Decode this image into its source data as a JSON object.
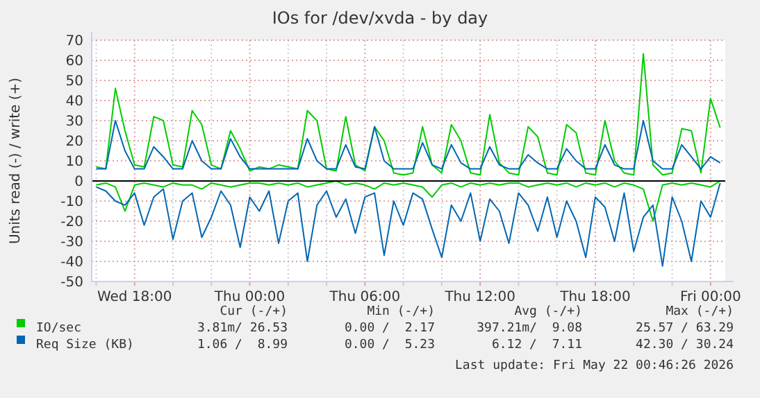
{
  "chart_data": {
    "type": "line",
    "title": "IOs for /dev/xvda - by day",
    "ylabel": "Units read (-) / write (+)",
    "x": [
      "2026-05-20T16:00",
      "2026-05-20T16:30",
      "2026-05-20T17:00",
      "2026-05-20T17:30",
      "2026-05-20T18:00",
      "2026-05-20T18:30",
      "2026-05-20T19:00",
      "2026-05-20T19:30",
      "2026-05-20T20:00",
      "2026-05-20T20:30",
      "2026-05-20T21:00",
      "2026-05-20T21:30",
      "2026-05-20T22:00",
      "2026-05-20T22:30",
      "2026-05-20T23:00",
      "2026-05-20T23:30",
      "2026-05-21T00:00",
      "2026-05-21T00:30",
      "2026-05-21T01:00",
      "2026-05-21T01:30",
      "2026-05-21T02:00",
      "2026-05-21T02:30",
      "2026-05-21T03:00",
      "2026-05-21T03:30",
      "2026-05-21T04:00",
      "2026-05-21T04:30",
      "2026-05-21T05:00",
      "2026-05-21T05:30",
      "2026-05-21T06:00",
      "2026-05-21T06:30",
      "2026-05-21T07:00",
      "2026-05-21T07:30",
      "2026-05-21T08:00",
      "2026-05-21T08:30",
      "2026-05-21T09:00",
      "2026-05-21T09:30",
      "2026-05-21T10:00",
      "2026-05-21T10:30",
      "2026-05-21T11:00",
      "2026-05-21T11:30",
      "2026-05-21T12:00",
      "2026-05-21T12:30",
      "2026-05-21T13:00",
      "2026-05-21T13:30",
      "2026-05-21T14:00",
      "2026-05-21T14:30",
      "2026-05-21T15:00",
      "2026-05-21T15:30",
      "2026-05-21T16:00",
      "2026-05-21T16:30",
      "2026-05-21T17:00",
      "2026-05-21T17:30",
      "2026-05-21T18:00",
      "2026-05-21T18:30",
      "2026-05-21T19:00",
      "2026-05-21T19:30",
      "2026-05-21T20:00",
      "2026-05-21T20:30",
      "2026-05-21T21:00",
      "2026-05-21T21:30",
      "2026-05-21T22:00",
      "2026-05-21T22:30",
      "2026-05-21T23:00",
      "2026-05-21T23:30",
      "2026-05-22T00:00",
      "2026-05-22T00:30"
    ],
    "series": [
      {
        "name": "IO/sec",
        "color": "#00cc00",
        "values": [
          7,
          6,
          46,
          25,
          8,
          7,
          32,
          30,
          8,
          7,
          35,
          28,
          8,
          6,
          25,
          16,
          5,
          7,
          6,
          8,
          7,
          6,
          35,
          30,
          6,
          5,
          32,
          8,
          5,
          27,
          20,
          4,
          3,
          4,
          27,
          8,
          4,
          28,
          20,
          4,
          3,
          33,
          9,
          4,
          3,
          27,
          22,
          4,
          3,
          28,
          24,
          4,
          3,
          30,
          10,
          4,
          3,
          63.3,
          8,
          3,
          4,
          26,
          25,
          4,
          41,
          26.5
        ]
      },
      {
        "color": "#00cc00",
        "values": [
          -2,
          -1,
          -3,
          -15,
          -2,
          -1,
          -2,
          -3,
          -1,
          -2,
          -2,
          -4,
          -1,
          -2,
          -3,
          -2,
          -1,
          -1,
          -2,
          -1,
          -2,
          -1,
          -3,
          -2,
          -1,
          0,
          -2,
          -1,
          -2,
          -4,
          -1,
          -2,
          -1,
          -2,
          -3,
          -8,
          -2,
          -1,
          -3,
          -1,
          -2,
          -1,
          -2,
          -1,
          -1,
          -3,
          -2,
          -1,
          -2,
          -1,
          -3,
          -1,
          -2,
          -1,
          -3,
          -1,
          -2,
          -4,
          -20,
          -2,
          -1,
          -2,
          -1,
          -2,
          -3,
          0
        ]
      },
      {
        "name": "Req Size (KB)",
        "color": "#0066b3",
        "values": [
          6,
          6,
          30,
          15,
          6,
          6,
          17,
          12,
          6,
          6,
          20,
          10,
          6,
          6,
          21,
          12,
          6,
          6,
          6,
          6,
          6,
          6,
          21,
          10,
          6,
          6,
          18,
          7,
          6,
          27,
          10,
          6,
          6,
          6,
          19,
          8,
          6,
          18,
          9,
          6,
          6,
          17,
          8,
          6,
          6,
          13,
          9,
          6,
          6,
          16,
          10,
          6,
          6,
          18,
          8,
          6,
          6,
          30,
          10,
          6,
          6,
          18,
          12,
          6,
          12,
          9
        ]
      },
      {
        "color": "#0066b3",
        "values": [
          -3,
          -5,
          -10,
          -12,
          -6,
          -22,
          -8,
          -4,
          -29,
          -10,
          -6,
          -28,
          -18,
          -5,
          -12,
          -33,
          -8,
          -15,
          -5,
          -31,
          -10,
          -6,
          -40,
          -12,
          -5,
          -18,
          -9,
          -26,
          -8,
          -6,
          -37,
          -10,
          -22,
          -6,
          -9,
          -24,
          -38,
          -12,
          -20,
          -6,
          -30,
          -9,
          -15,
          -31,
          -6,
          -12,
          -25,
          -8,
          -28,
          -10,
          -20,
          -38,
          -8,
          -13,
          -30,
          -6,
          -35,
          -18,
          -12,
          -42.3,
          -8,
          -20,
          -40,
          -10,
          -18,
          -1
        ]
      }
    ],
    "xlim": [
      "2026-05-20T15:46",
      "2026-05-22T00:46"
    ],
    "xticks": [
      {
        "value": "2026-05-20T16:00",
        "label": null
      },
      {
        "value": "2026-05-20T18:00",
        "label": "Wed 18:00"
      },
      {
        "value": "2026-05-20T20:00",
        "label": null
      },
      {
        "value": "2026-05-20T22:00",
        "label": null
      },
      {
        "value": "2026-05-21T00:00",
        "label": "Thu 00:00"
      },
      {
        "value": "2026-05-21T02:00",
        "label": null
      },
      {
        "value": "2026-05-21T04:00",
        "label": null
      },
      {
        "value": "2026-05-21T06:00",
        "label": "Thu 06:00"
      },
      {
        "value": "2026-05-21T08:00",
        "label": null
      },
      {
        "value": "2026-05-21T10:00",
        "label": null
      },
      {
        "value": "2026-05-21T12:00",
        "label": "Thu 12:00"
      },
      {
        "value": "2026-05-21T14:00",
        "label": null
      },
      {
        "value": "2026-05-21T16:00",
        "label": null
      },
      {
        "value": "2026-05-21T18:00",
        "label": "Thu 18:00"
      },
      {
        "value": "2026-05-21T20:00",
        "label": null
      },
      {
        "value": "2026-05-21T22:00",
        "label": null
      },
      {
        "value": "2026-05-22T00:00",
        "label": "Fri 00:00"
      }
    ],
    "ylim": [
      -50,
      70
    ],
    "yticks": [
      -50,
      -40,
      -30,
      -20,
      -10,
      0,
      10,
      20,
      30,
      40,
      50,
      60,
      70
    ],
    "grid": true,
    "legend": "bottom",
    "marker": "none",
    "line_style": "solid",
    "annotations": [
      "Cur (-/+)",
      "Min (-/+)",
      "Avg (-/+)",
      "Max (-/+)",
      "3.81m/ 26.53",
      "0.00 /  2.17",
      "397.21m/  9.08",
      "25.57 / 63.29",
      "1.06 /  8.99",
      "0.00 /  5.23",
      "6.12 /  7.11",
      "42.30 / 30.24",
      "Last update: Fri May 22 00:46:26 2026"
    ]
  }
}
